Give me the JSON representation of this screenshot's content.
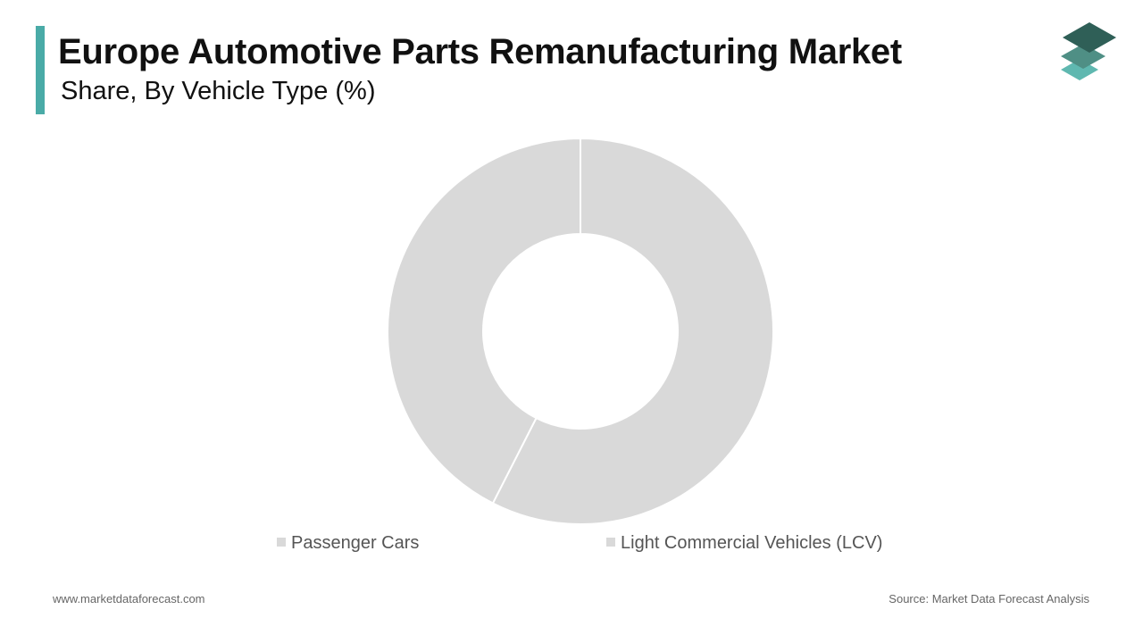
{
  "header": {
    "title": "Europe Automotive Parts Remanufacturing Market",
    "subtitle": "Share, By Vehicle Type (%)"
  },
  "footer": {
    "website": "www.marketdataforecast.com",
    "source": "Source: Market Data Forecast Analysis"
  },
  "colors": {
    "accent": "#4aaba7",
    "slice": "#d9d9d9",
    "logo_dark": "#2f5f57",
    "logo_mid": "#4f8f85",
    "logo_light": "#5fb8b0"
  },
  "icons": {
    "logo": "stacked-layers-icon"
  },
  "chart_data": {
    "type": "pie",
    "style": "donut",
    "title": "Europe Automotive Parts Remanufacturing Market",
    "subtitle": "Share, By Vehicle Type (%)",
    "categories": [
      "Passenger Cars",
      "Light Commercial Vehicles (LCV)"
    ],
    "values": [
      57.5,
      42.5
    ],
    "legend_position": "bottom"
  }
}
